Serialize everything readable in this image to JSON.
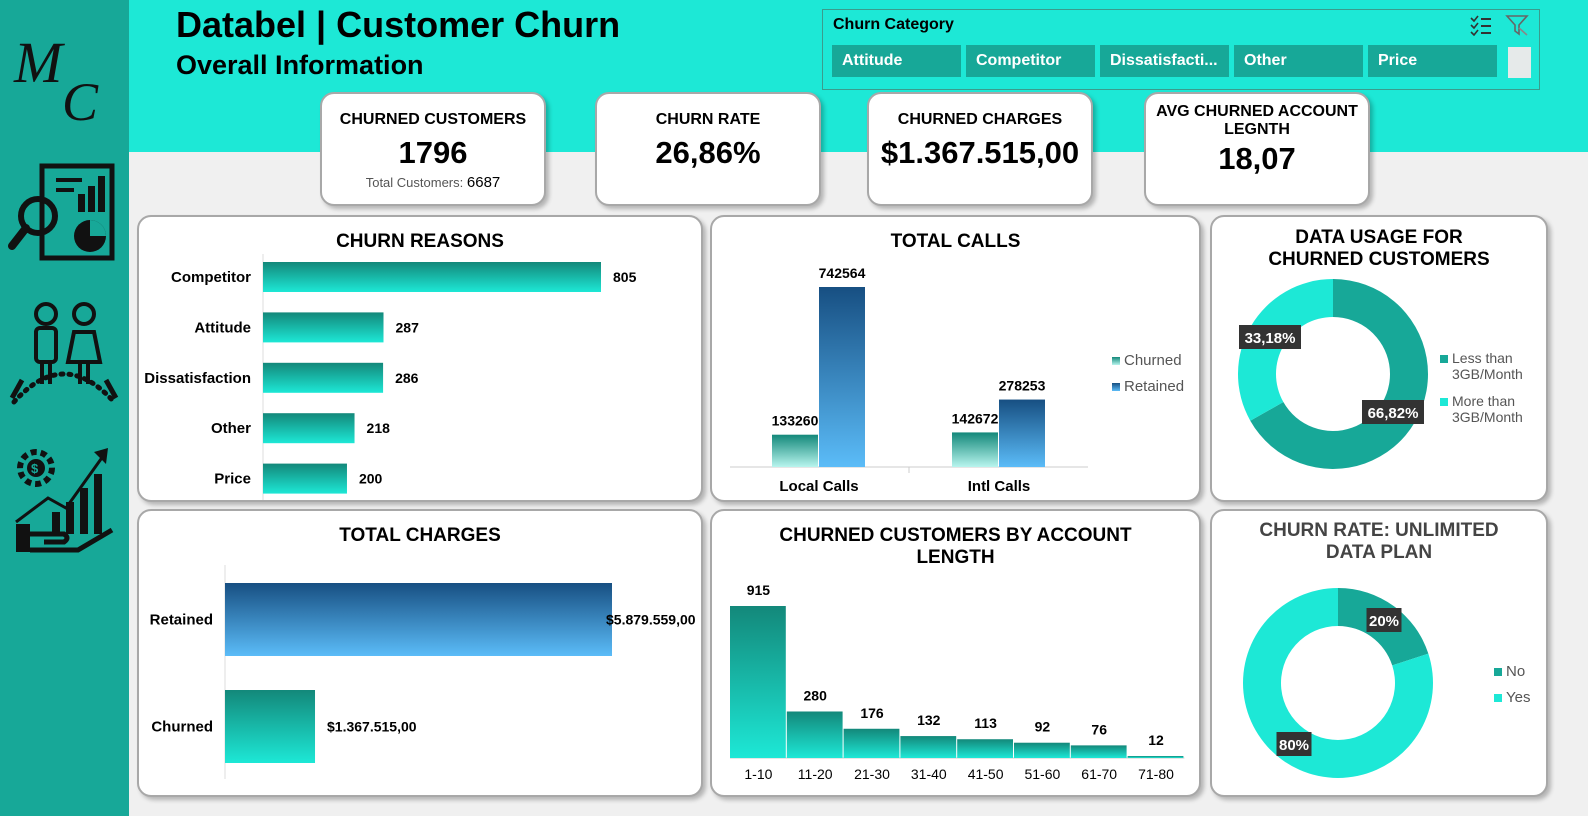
{
  "header": {
    "title": "Databel | Customer Churn",
    "subtitle": "Overall Information",
    "logo_text": "MC"
  },
  "slicer": {
    "title": "Churn Category",
    "items": [
      "Attitude",
      "Competitor",
      "Dissatisfacti...",
      "Other",
      "Price"
    ]
  },
  "kpis": {
    "churned_customers": {
      "label": "CHURNED CUSTOMERS",
      "value": "1796",
      "sub_label": "Total Customers:",
      "sub_value": "6687"
    },
    "churn_rate": {
      "label": "CHURN RATE",
      "value": "26,86%"
    },
    "churned_charges": {
      "label": "CHURNED CHARGES",
      "value": "$1.367.515,00"
    },
    "avg_account": {
      "label": "AVG CHURNED ACCOUNT LEGNTH",
      "value": "18,07"
    }
  },
  "colors": {
    "teal_dark": "#17a898",
    "teal_light": "#1de8d6",
    "blue_dark": "#1a5a8a",
    "blue_light": "#5bbcf8"
  },
  "chart_data": [
    {
      "id": "churn_reasons",
      "type": "bar",
      "orientation": "horizontal",
      "title": "CHURN REASONS",
      "categories": [
        "Competitor",
        "Attitude",
        "Dissatisfaction",
        "Other",
        "Price"
      ],
      "values": [
        805,
        287,
        286,
        218,
        200
      ],
      "labels": [
        "805",
        "287",
        "286",
        "218",
        "200"
      ]
    },
    {
      "id": "total_calls",
      "type": "bar",
      "title": "TOTAL CALLS",
      "categories": [
        "Local Calls",
        "Intl Calls"
      ],
      "series": [
        {
          "name": "Churned",
          "values": [
            133260,
            142672
          ],
          "labels": [
            "133260",
            "142672"
          ]
        },
        {
          "name": "Retained",
          "values": [
            742564,
            278253
          ],
          "labels": [
            "742564",
            "278253"
          ]
        }
      ],
      "legend": "right"
    },
    {
      "id": "data_usage",
      "type": "pie",
      "title": "DATA USAGE FOR CHURNED CUSTOMERS",
      "categories": [
        "Less than 3GB/Month",
        "More than 3GB/Month"
      ],
      "values": [
        66.82,
        33.18
      ],
      "labels": [
        "66,82%",
        "33,18%"
      ],
      "legend": "right"
    },
    {
      "id": "total_charges",
      "type": "bar",
      "orientation": "horizontal",
      "title": "TOTAL CHARGES",
      "categories": [
        "Retained",
        "Churned"
      ],
      "values": [
        5879559,
        1367515
      ],
      "labels": [
        "$5.879.559,00",
        "$1.367.515,00"
      ]
    },
    {
      "id": "account_length",
      "type": "bar",
      "title": "CHURNED CUSTOMERS BY ACCOUNT LENGTH",
      "categories": [
        "1-10",
        "11-20",
        "21-30",
        "31-40",
        "41-50",
        "51-60",
        "61-70",
        "71-80"
      ],
      "values": [
        915,
        280,
        176,
        132,
        113,
        92,
        76,
        12
      ],
      "labels": [
        "915",
        "280",
        "176",
        "132",
        "113",
        "92",
        "76",
        "12"
      ]
    },
    {
      "id": "unlimited_plan",
      "type": "pie",
      "title": "CHURN RATE: UNLIMITED DATA PLAN",
      "categories": [
        "No",
        "Yes"
      ],
      "values": [
        20,
        80
      ],
      "labels": [
        "20%",
        "80%"
      ],
      "legend": "right"
    }
  ]
}
